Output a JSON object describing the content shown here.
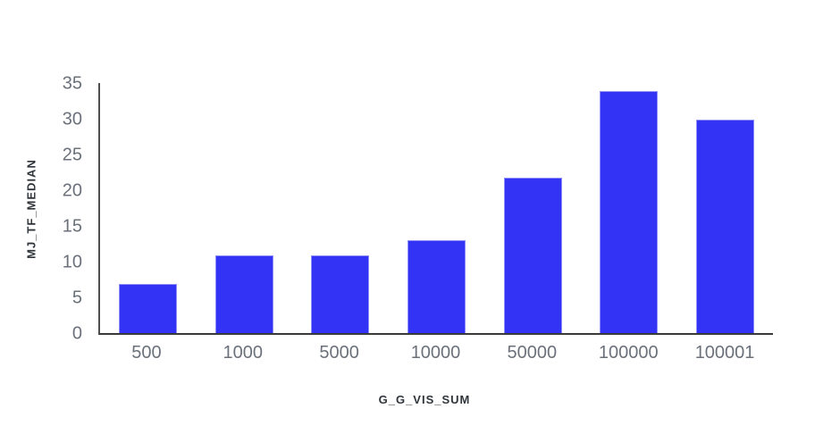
{
  "chart_data": {
    "type": "bar",
    "categories": [
      "500",
      "1000",
      "5000",
      "10000",
      "50000",
      "100000",
      "100001"
    ],
    "values": [
      6.9,
      10.9,
      10.9,
      13.0,
      21.8,
      33.9,
      29.9
    ],
    "title": "",
    "xlabel": "G_G_VIS_SUM",
    "ylabel": "MJ_TF_MEDIAN",
    "yticks": [
      0,
      5,
      10,
      15,
      20,
      25,
      30,
      35
    ],
    "ylim": [
      0,
      35
    ],
    "grid": false,
    "legend_position": "none",
    "bar_color": "#3333f5",
    "bar_border_color": "#8d8ef6",
    "axis_line_color": "#3a3a3a",
    "tick_label_color": "#6b717b",
    "axis_label_color": "#2f353b",
    "background_color": "#ffffff"
  }
}
